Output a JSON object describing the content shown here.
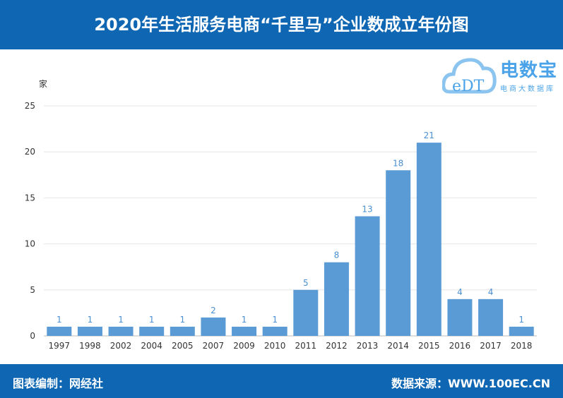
{
  "header": {
    "title": "2020年生活服务电商“千里马”企业数成立年份图"
  },
  "logo": {
    "name": "电数宝",
    "subtitle": "电商大数据库",
    "mark": "eDT"
  },
  "footer": {
    "left": "图表编制：网经社",
    "right": "数据来源：WWW.100EC.CN"
  },
  "chart_data": {
    "type": "bar",
    "title": "2020年生活服务电商“千里马”企业数成立年份图",
    "ylabel": "家",
    "xlabel": "",
    "categories": [
      "1997",
      "1998",
      "2002",
      "2004",
      "2005",
      "2007",
      "2009",
      "2010",
      "2011",
      "2012",
      "2013",
      "2014",
      "2015",
      "2016",
      "2017",
      "2018"
    ],
    "values": [
      1,
      1,
      1,
      1,
      1,
      2,
      1,
      1,
      5,
      8,
      13,
      18,
      21,
      4,
      4,
      1
    ],
    "ylim": [
      0,
      25
    ],
    "yticks": [
      0,
      5,
      10,
      15,
      20,
      25
    ],
    "grid": true,
    "bar_color": "#5b9bd5",
    "label_color": "#4a8fd0"
  }
}
